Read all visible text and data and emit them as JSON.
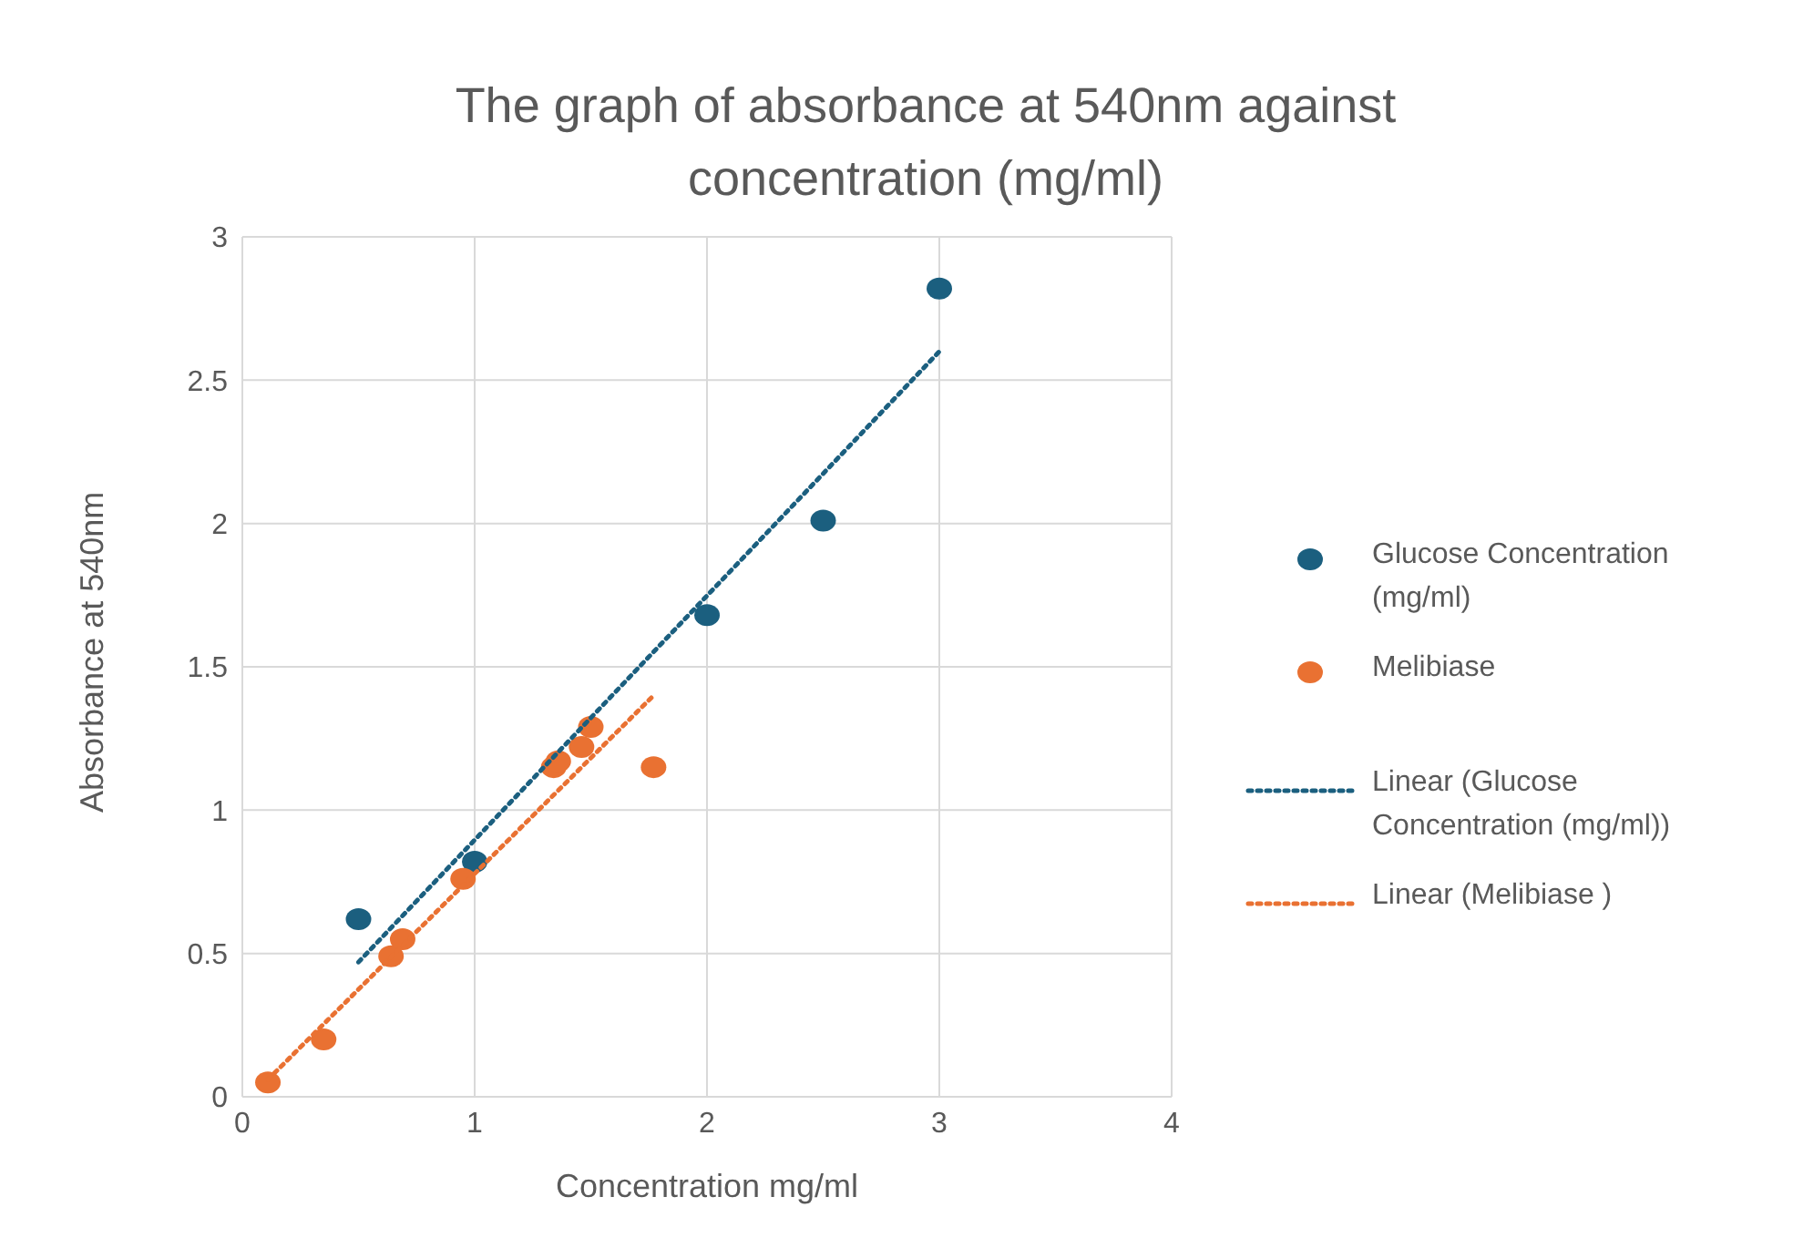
{
  "chart_data": {
    "type": "scatter",
    "title": "The graph of absorbance at 540nm against concentration (mg/ml)",
    "xlabel": "Concentration mg/ml",
    "ylabel": "Absorbance at 540nm",
    "xlim": [
      0,
      4
    ],
    "xticks": [
      0,
      1,
      2,
      3,
      4
    ],
    "ylim": [
      0,
      3
    ],
    "yticks": [
      0,
      0.5,
      1,
      1.5,
      2,
      2.5,
      3
    ],
    "grid": true,
    "legend": "right",
    "series": [
      {
        "name": "Glucose Concentration (mg/ml)",
        "marker": "circle",
        "color": "#1b5f7f",
        "x": [
          0.5,
          1,
          2,
          2.5,
          3
        ],
        "values": [
          0.62,
          0.82,
          1.68,
          2.01,
          2.82
        ]
      },
      {
        "name": "Melibiase",
        "marker": "circle",
        "color": "#e97132",
        "x": [
          0.11,
          0.35,
          0.64,
          0.69,
          0.95,
          1.34,
          1.36,
          1.46,
          1.5,
          1.77
        ],
        "values": [
          0.05,
          0.2,
          0.49,
          0.55,
          0.76,
          1.15,
          1.17,
          1.22,
          1.29,
          1.15
        ]
      },
      {
        "name": "Linear (Glucose Concentration (mg/ml))",
        "type": "line",
        "marker": "none",
        "line_style": "dotted",
        "color": "#1b5f7f",
        "x": [
          0.5,
          3
        ],
        "values": [
          0.47,
          2.6
        ]
      },
      {
        "name": "Linear (Melibiase )",
        "type": "line",
        "marker": "none",
        "line_style": "dotted",
        "color": "#e97132",
        "x": [
          0.11,
          1.77
        ],
        "values": [
          0.06,
          1.4
        ]
      }
    ]
  }
}
